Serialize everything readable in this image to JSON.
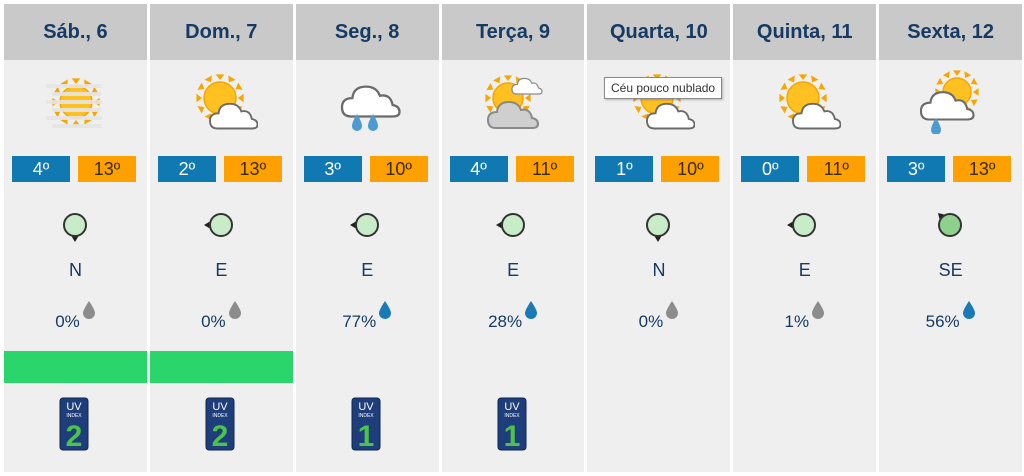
{
  "days": [
    {
      "label": "Sáb., 6",
      "weather": "fog-sun-icon",
      "tmin": "4º",
      "tmax": "13º",
      "wind_dir": "N",
      "wind_color": "#c8ecc8",
      "precip": "0%",
      "precip_color": "#8c8c8c",
      "air_quality_color": "#2ad66c",
      "uv": "2"
    },
    {
      "label": "Dom., 7",
      "weather": "sun-cloud-icon",
      "tmin": "2º",
      "tmax": "13º",
      "wind_dir": "E",
      "wind_color": "#c8ecc8",
      "precip": "0%",
      "precip_color": "#8c8c8c",
      "air_quality_color": "#2ad66c",
      "uv": "2"
    },
    {
      "label": "Seg., 8",
      "weather": "rain-cloud-icon",
      "tmin": "3º",
      "tmax": "10º",
      "wind_dir": "E",
      "wind_color": "#c8ecc8",
      "precip": "77%",
      "precip_color": "#1a7ab8",
      "air_quality_color": null,
      "uv": "1"
    },
    {
      "label": "Terça, 9",
      "weather": "sun-clouds-icon",
      "tmin": "4º",
      "tmax": "11º",
      "wind_dir": "E",
      "wind_color": "#c8ecc8",
      "precip": "28%",
      "precip_color": "#1a7ab8",
      "air_quality_color": null,
      "uv": "1"
    },
    {
      "label": "Quarta, 10",
      "weather": "sun-cloud-icon",
      "tmin": "1º",
      "tmax": "10º",
      "wind_dir": "N",
      "wind_color": "#c8ecc8",
      "precip": "0%",
      "precip_color": "#8c8c8c",
      "air_quality_color": null,
      "uv": null
    },
    {
      "label": "Quinta, 11",
      "weather": "sun-cloud-icon",
      "tmin": "0º",
      "tmax": "11º",
      "wind_dir": "E",
      "wind_color": "#c8ecc8",
      "precip": "1%",
      "precip_color": "#8c8c8c",
      "air_quality_color": null,
      "uv": null
    },
    {
      "label": "Sexta, 12",
      "weather": "sun-cloud-rain-icon",
      "tmin": "3º",
      "tmax": "13º",
      "wind_dir": "SE",
      "wind_color": "#8fd08f",
      "precip": "56%",
      "precip_color": "#1a7ab8",
      "air_quality_color": null,
      "uv": null
    }
  ],
  "uv_index_label": "INDEX",
  "uv_label": "UV",
  "tooltip": {
    "text": "Céu pouco nublado",
    "day_index": 4
  }
}
